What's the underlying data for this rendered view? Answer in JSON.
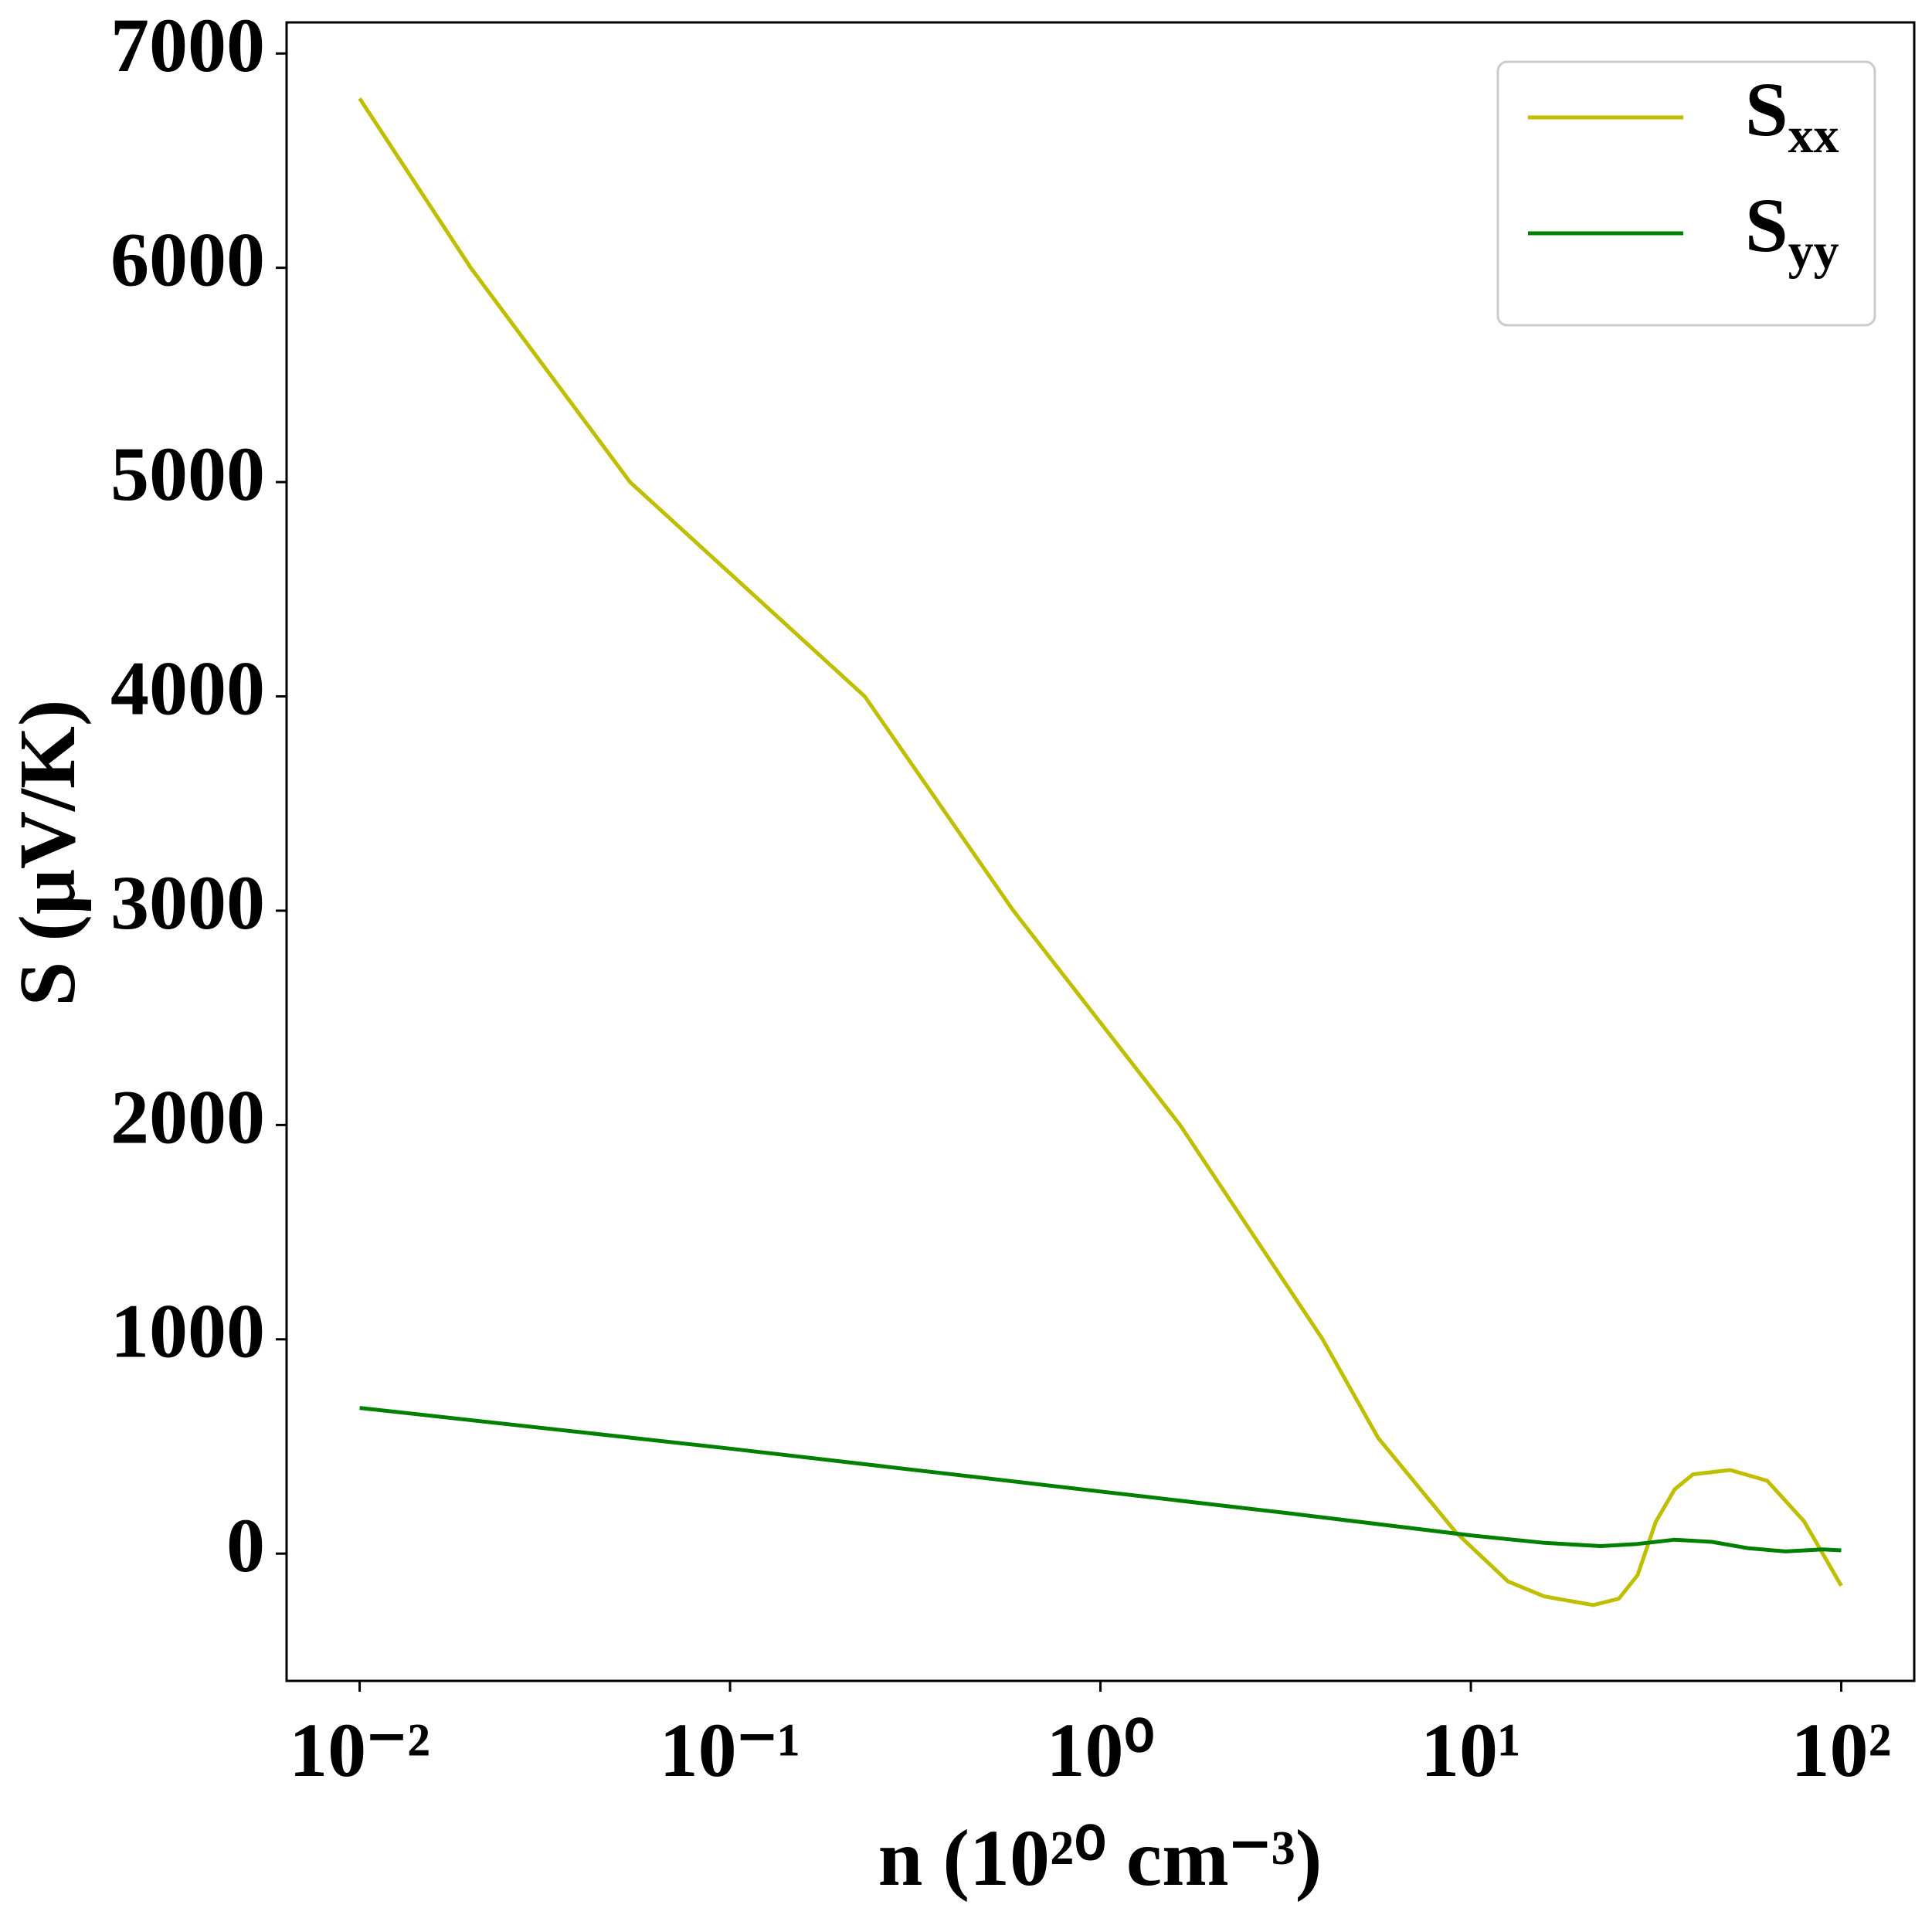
{
  "chart_data": {
    "type": "line",
    "xlabel": "n (10²⁰ cm⁻³)",
    "ylabel": "S (μV/K)",
    "xscale": "log",
    "xlim": [
      0.00635,
      157.4
    ],
    "ylim": [
      -594,
      7145
    ],
    "xticks": [
      {
        "value": 0.01,
        "label": "10⁻²"
      },
      {
        "value": 0.1,
        "label": "10⁻¹"
      },
      {
        "value": 1,
        "label": "10⁰"
      },
      {
        "value": 10,
        "label": "10¹"
      },
      {
        "value": 100,
        "label": "10²"
      }
    ],
    "yticks": [
      0,
      1000,
      2000,
      3000,
      4000,
      5000,
      6000,
      7000
    ],
    "grid": false,
    "legend": "upper right",
    "series": [
      {
        "name": "Sxx",
        "color": "#bfbf00",
        "x": [
          0.01,
          0.01995,
          0.0537,
          0.231,
          0.582,
          1.64,
          3.98,
          5.62,
          9.12,
          12.6,
          15.8,
          21.4,
          25.1,
          28.2,
          31.6,
          35.5,
          39.8,
          50.1,
          63.1,
          79.4,
          100
        ],
        "values": [
          6790,
          6000,
          5000,
          4000,
          3000,
          2000,
          1000,
          540,
          98,
          -130,
          -200,
          -240,
          -210,
          -100,
          150,
          300,
          370,
          390,
          340,
          150,
          -150
        ]
      },
      {
        "name": "Syy",
        "color": "#008000",
        "x": [
          0.01,
          0.1,
          1,
          3.16,
          10,
          15.8,
          22.4,
          28.2,
          35.5,
          44.7,
          56.2,
          70.8,
          89.1,
          100
        ],
        "values": [
          680,
          490,
          290,
          190,
          85,
          50,
          35,
          45,
          65,
          55,
          25,
          10,
          20,
          15
        ]
      }
    ]
  }
}
